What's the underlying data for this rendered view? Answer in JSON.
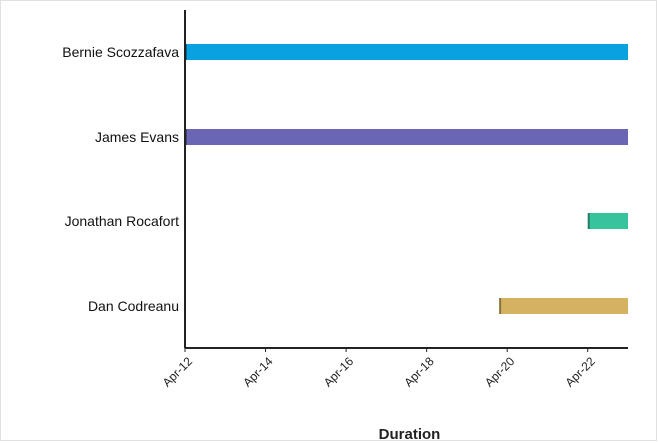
{
  "chart_data": {
    "type": "bar",
    "orientation": "horizontal",
    "subtype": "gantt",
    "title": "",
    "xlabel": "Duration",
    "ylabel": "",
    "categories": [
      "Bernie Scozzafava",
      "James Evans",
      "Jonathan Rocafort",
      "Dan Codreanu"
    ],
    "tasks": [
      {
        "name": "Bernie Scozzafava",
        "start": "2024-04-12",
        "end": "2024-04-23",
        "color": "#0aa1e1"
      },
      {
        "name": "James Evans",
        "start": "2024-04-12",
        "end": "2024-04-23",
        "color": "#6a66b5"
      },
      {
        "name": "Jonathan Rocafort",
        "start": "2024-04-22",
        "end": "2024-04-23",
        "color": "#35c49c"
      },
      {
        "name": "Dan Codreanu",
        "start": "2024-04-19.8",
        "end": "2024-04-23",
        "color": "#d4b261"
      }
    ],
    "xlim": [
      "2024-04-12",
      "2024-04-23"
    ],
    "x_ticks": [
      "Apr-12",
      "Apr-14",
      "Apr-16",
      "Apr-18",
      "Apr-20",
      "Apr-22"
    ],
    "x_tick_values": [
      "2024-04-12",
      "2024-04-14",
      "2024-04-16",
      "2024-04-18",
      "2024-04-20",
      "2024-04-22"
    ],
    "grid": false,
    "legend": "none",
    "axis_color": "#222222"
  }
}
